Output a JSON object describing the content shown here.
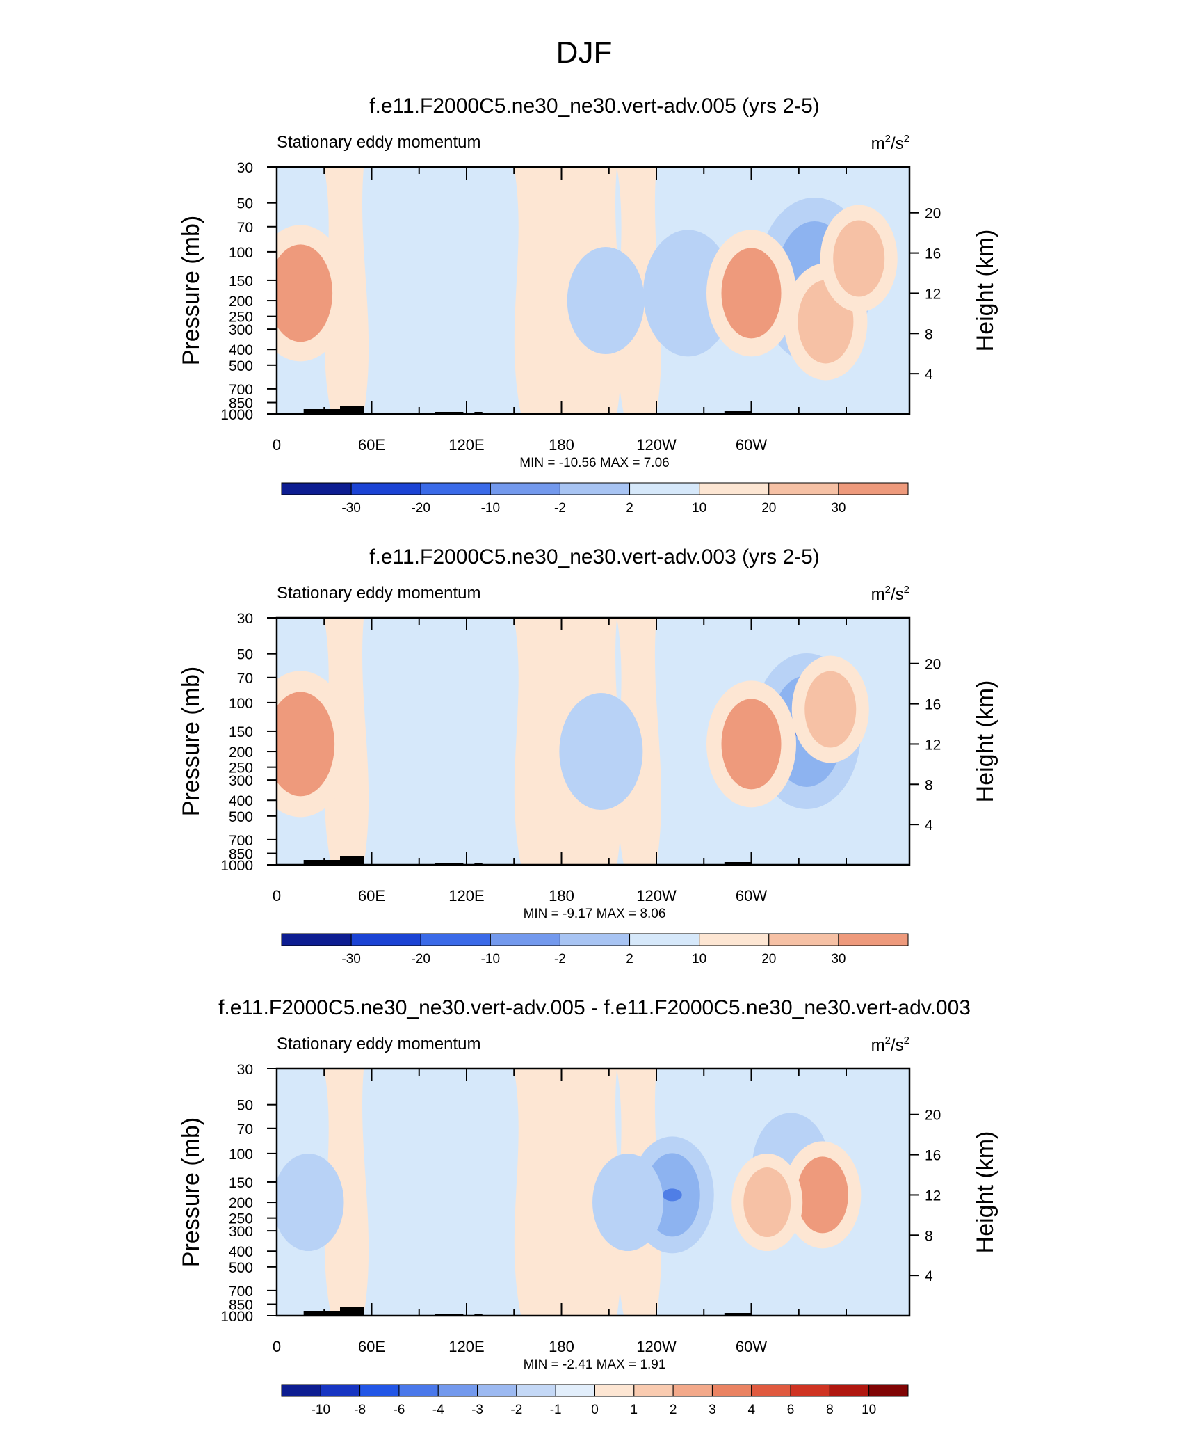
{
  "page_title": "DJF",
  "colors": {
    "neg_small": "#d6e8fa",
    "neg_mid": "#b8d2f6",
    "neg_strong": "#8db3f0",
    "neg_max": "#4f7ee6",
    "pos_small": "#fde6d3",
    "pos_mid": "#f6c1a5",
    "pos_strong": "#ee9a7c",
    "terrain": "#000000"
  },
  "chart_data": [
    {
      "type": "heatmap",
      "title": "f.e11.F2000C5.ne30_ne30.vert-adv.005 (yrs 2-5)",
      "left_string": "Stationary eddy momentum",
      "units": "m2/s2",
      "ylabel": "Pressure (mb)",
      "ylabel_right": "Height (km)",
      "x_tick_labels": [
        "0",
        "60E",
        "120E",
        "180",
        "120W",
        "60W"
      ],
      "y_tick_labels": [
        "30",
        "50",
        "70",
        "100",
        "150",
        "200",
        "250",
        "300",
        "400",
        "500",
        "700",
        "850",
        "1000"
      ],
      "y_right_tick_labels": [
        "20",
        "16",
        "12",
        "8",
        "4"
      ],
      "stats": "MIN = -10.56  MAX =   7.06",
      "colorbar_labels": [
        "-30",
        "-20",
        "-10",
        "-2",
        "2",
        "10",
        "20",
        "30"
      ],
      "features": [
        {
          "lon": 15,
          "p": 180,
          "value": 6
        },
        {
          "lon": 340,
          "p": 150,
          "value": -9
        },
        {
          "lon": 260,
          "p": 180,
          "value": -5
        },
        {
          "lon": 300,
          "p": 180,
          "value": 5
        },
        {
          "lon": 347,
          "p": 270,
          "value": 4
        },
        {
          "lon": 368,
          "p": 110,
          "value": 3
        },
        {
          "lon": 208,
          "p": 200,
          "value": -3
        }
      ]
    },
    {
      "type": "heatmap",
      "title": "f.e11.F2000C5.ne30_ne30.vert-adv.003 (yrs 2-5)",
      "left_string": "Stationary eddy momentum",
      "units": "m2/s2",
      "ylabel": "Pressure (mb)",
      "ylabel_right": "Height (km)",
      "x_tick_labels": [
        "0",
        "60E",
        "120E",
        "180",
        "120W",
        "60W"
      ],
      "y_tick_labels": [
        "30",
        "50",
        "70",
        "100",
        "150",
        "200",
        "250",
        "300",
        "400",
        "500",
        "700",
        "850",
        "1000"
      ],
      "y_right_tick_labels": [
        "20",
        "16",
        "12",
        "8",
        "4"
      ],
      "stats": "MIN =  -9.17  MAX =   8.06",
      "colorbar_labels": [
        "-30",
        "-20",
        "-10",
        "-2",
        "2",
        "10",
        "20",
        "30"
      ],
      "features": [
        {
          "lon": 15,
          "p": 180,
          "value": 7
        },
        {
          "lon": 335,
          "p": 150,
          "value": -8
        },
        {
          "lon": 205,
          "p": 200,
          "value": -4
        },
        {
          "lon": 300,
          "p": 180,
          "value": 5
        },
        {
          "lon": 350,
          "p": 110,
          "value": 3
        }
      ]
    },
    {
      "type": "heatmap",
      "title": "f.e11.F2000C5.ne30_ne30.vert-adv.005 - f.e11.F2000C5.ne30_ne30.vert-adv.003",
      "left_string": "Stationary eddy momentum",
      "units": "m2/s2",
      "ylabel": "Pressure (mb)",
      "ylabel_right": "Height (km)",
      "x_tick_labels": [
        "0",
        "60E",
        "120E",
        "180",
        "120W",
        "60W"
      ],
      "y_tick_labels": [
        "30",
        "50",
        "70",
        "100",
        "150",
        "200",
        "250",
        "300",
        "400",
        "500",
        "700",
        "850",
        "1000"
      ],
      "y_right_tick_labels": [
        "20",
        "16",
        "12",
        "8",
        "4"
      ],
      "stats": "MIN =  -2.41  MAX =   1.91",
      "colorbar_labels": [
        "-10",
        "-8",
        "-6",
        "-4",
        "-3",
        "-2",
        "-1",
        "0",
        "1",
        "2",
        "3",
        "4",
        "6",
        "8",
        "10"
      ],
      "features": [
        {
          "lon": 250,
          "p": 180,
          "value": -2
        },
        {
          "lon": 325,
          "p": 120,
          "value": -1.5
        },
        {
          "lon": 345,
          "p": 180,
          "value": 1.5
        },
        {
          "lon": 20,
          "p": 200,
          "value": -1
        },
        {
          "lon": 310,
          "p": 200,
          "value": 1
        },
        {
          "lon": 222,
          "p": 200,
          "value": -1
        }
      ]
    }
  ]
}
